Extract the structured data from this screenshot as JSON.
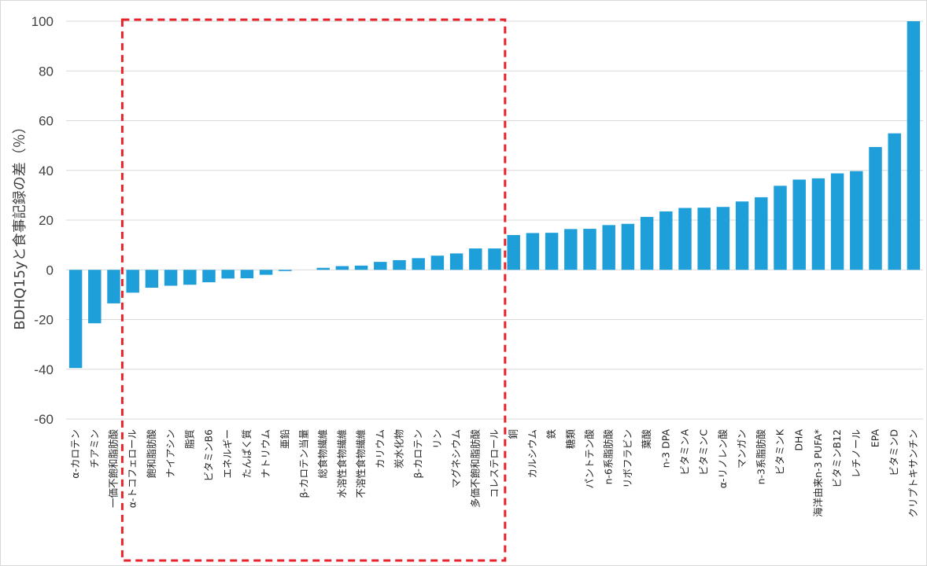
{
  "chart_data": {
    "type": "bar",
    "title": "",
    "xlabel": "",
    "ylabel": "BDHQ15yと食事記録の差（％）",
    "ylim": [
      -60,
      100
    ],
    "yticks": [
      -60,
      -40,
      -20,
      0,
      20,
      40,
      60,
      80,
      100
    ],
    "grid": true,
    "bar_color": "#1f9fd9",
    "highlight_color": "#e8232b",
    "highlight_range": [
      "α-トコフェロール",
      "コレステロール"
    ],
    "categories": [
      "α-カロテン",
      "チアミン",
      "一価不飽和脂肪酸",
      "α-トコフェロール",
      "飽和脂肪酸",
      "ナイアシン",
      "脂質",
      "ビタミンB6",
      "エネルギー",
      "たんぱく質",
      "ナトリウム",
      "亜鉛",
      "β-カロテン当量",
      "総食物繊維",
      "水溶性食物繊維",
      "不溶性食物繊維",
      "カリウム",
      "炭水化物",
      "β-カロテン",
      "リン",
      "マグネシウム",
      "多価不飽和脂肪酸",
      "コレステロール",
      "銅",
      "カルシウム",
      "鉄",
      "糖類",
      "パントテン酸",
      "n-6系脂肪酸",
      "リボフラビン",
      "葉酸",
      "n-3 DPA",
      "ビタミンA",
      "ビタミンC",
      "α-リノレン酸",
      "マンガン",
      "n-3系脂肪酸",
      "ビタミンK",
      "DHA",
      "海洋由来n-3 PUFA*",
      "ビタミンB12",
      "レチノール",
      "EPA",
      "ビタミンD",
      "クリプトキサンチン"
    ],
    "values": [
      -39.5,
      -21.5,
      -13.5,
      -9.2,
      -7.2,
      -6.4,
      -6.0,
      -5.0,
      -3.5,
      -3.4,
      -2.0,
      -0.5,
      0.0,
      0.8,
      1.5,
      1.7,
      3.2,
      3.9,
      4.7,
      5.7,
      6.6,
      8.6,
      8.6,
      14.0,
      14.8,
      14.9,
      16.4,
      16.5,
      18.0,
      18.5,
      21.3,
      23.5,
      24.9,
      25.0,
      25.3,
      27.5,
      29.2,
      33.8,
      36.3,
      36.8,
      38.8,
      39.7,
      49.4,
      54.9,
      100.0
    ]
  }
}
